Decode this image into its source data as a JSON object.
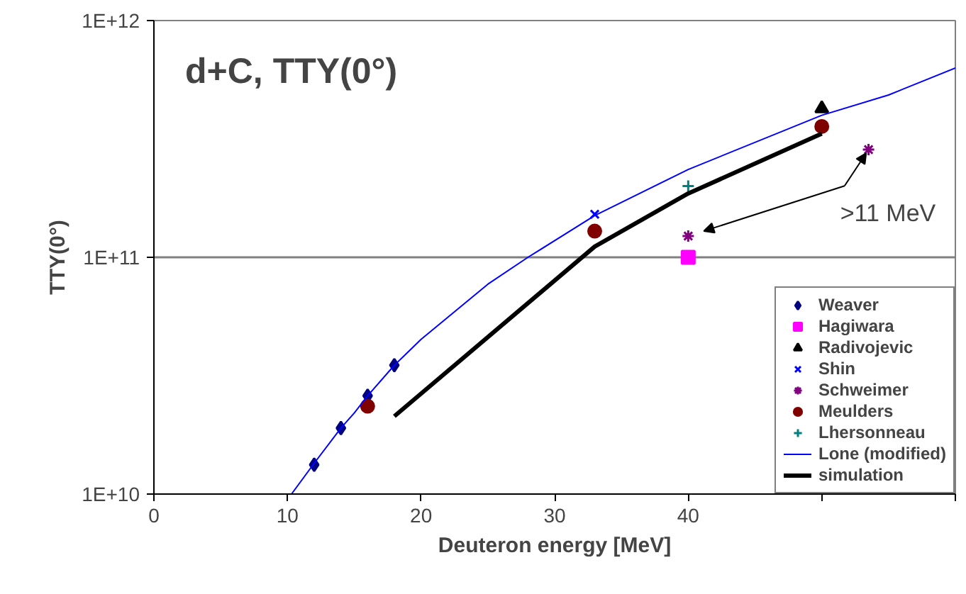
{
  "chart_data": {
    "type": "scatter",
    "title": "d+C, TTY(0°)",
    "xlabel": "Deuteron energy [MeV]",
    "ylabel": "TTY(0°)",
    "xlim": [
      0,
      60
    ],
    "ylim": [
      10000000000.0,
      1000000000000.0
    ],
    "log": "y",
    "grid": "y",
    "legend": "bottom right",
    "xticks": [
      0,
      10,
      20,
      30,
      40,
      {
        "value": 50,
        "label": null
      },
      {
        "value": 60,
        "label": null
      }
    ],
    "yticks": [
      {
        "value": 10000000000.0,
        "label": "1E+10"
      },
      {
        "value": 100000000000.0,
        "label": "1E+11"
      },
      {
        "value": 1000000000000.0,
        "label": "1E+12"
      }
    ],
    "annotations": [
      {
        "text": ">11 MeV",
        "x": 53.5,
        "y": 285000000000.0
      }
    ],
    "series": [
      {
        "name": "Weaver",
        "marker": "diamond",
        "color": "#000080",
        "x": [
          12,
          14,
          16,
          18
        ],
        "values": [
          13300000000.0,
          19000000000.0,
          26000000000.0,
          35000000000.0
        ]
      },
      {
        "name": "Hagiwara",
        "marker": "square",
        "color": "#ff00ff",
        "x": [
          40
        ],
        "values": [
          100000000000.0
        ]
      },
      {
        "name": "Radivojevic",
        "marker": "triangle",
        "color": "#000000",
        "x": [
          50
        ],
        "values": [
          425000000000.0
        ]
      },
      {
        "name": "Shin",
        "marker": "x",
        "color": "#0000ff",
        "x": [
          33
        ],
        "values": [
          152000000000.0
        ]
      },
      {
        "name": "Schweimer",
        "marker": "cross",
        "color": "#800080",
        "x": [
          40,
          53.5
        ],
        "values": [
          123000000000.0,
          285000000000.0
        ]
      },
      {
        "name": "Meulders",
        "marker": "circle",
        "color": "#800000",
        "x": [
          16,
          33,
          50
        ],
        "values": [
          23500000000.0,
          129000000000.0,
          357000000000.0
        ]
      },
      {
        "name": "Lhersonneau",
        "marker": "plus",
        "color": "#008080",
        "x": [
          40
        ],
        "values": [
          200000000000.0
        ]
      },
      {
        "name": "Lone (modified)",
        "type": "line",
        "color": "#0000ff",
        "x": [
          10.3,
          12,
          14,
          15,
          16,
          18,
          20,
          25,
          28,
          33,
          40,
          50,
          55,
          60
        ],
        "values": [
          10000000000.0,
          13500000000.0,
          19000000000.0,
          22000000000.0,
          26000000000.0,
          35000000000.0,
          45000000000.0,
          77000000000.0,
          100000000000.0,
          150000000000.0,
          235000000000.0,
          398000000000.0,
          485000000000.0,
          630000000000.0
        ]
      },
      {
        "name": "simulation",
        "type": "line",
        "color": "#000000",
        "x": [
          18,
          33,
          40,
          50
        ],
        "values": [
          21300000000.0,
          111000000000.0,
          186000000000.0,
          333000000000.0
        ]
      }
    ]
  }
}
